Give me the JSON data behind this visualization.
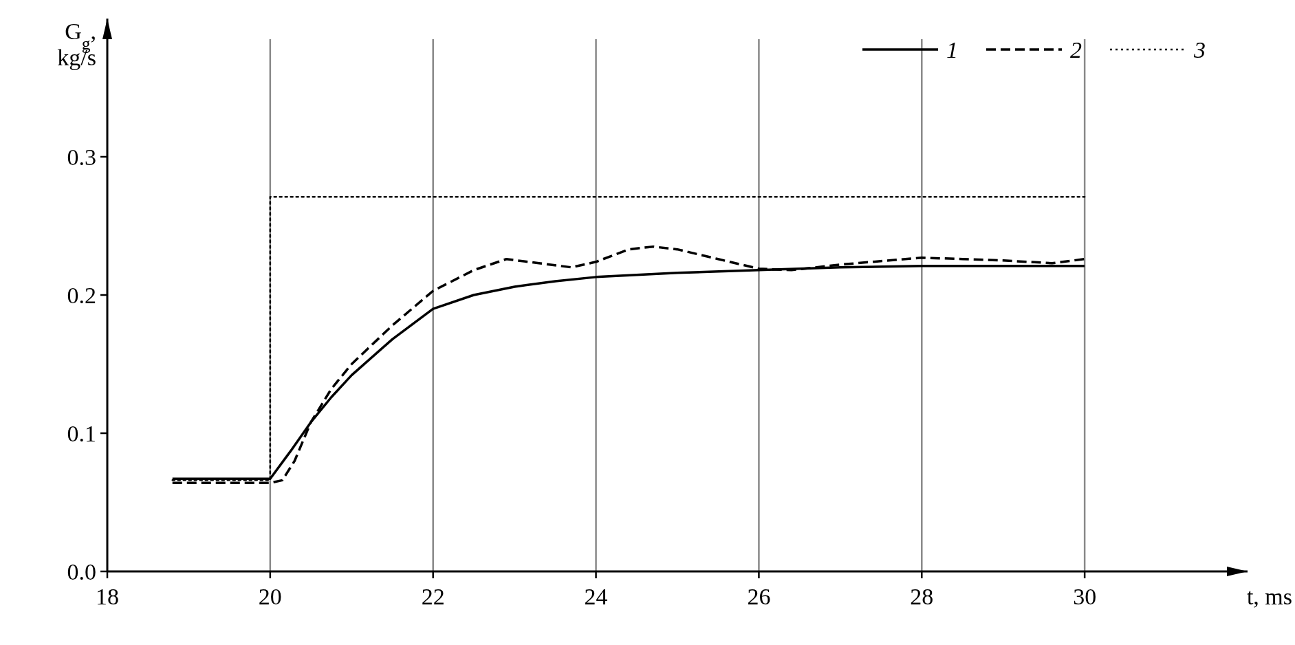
{
  "chart_data": {
    "type": "line",
    "xlabel": "t, ms",
    "ylabel": "G$_{g}$, kg/s",
    "xlim": [
      18,
      32
    ],
    "ylim": [
      0,
      0.4
    ],
    "xticks": [
      18,
      20,
      22,
      24,
      26,
      28,
      30
    ],
    "yticks": [
      {
        "value": 0,
        "label": "0.0"
      },
      0.1,
      0.2,
      0.3
    ],
    "grid": "x",
    "legend": "top right",
    "series": [
      {
        "name": "1",
        "color": "#000000",
        "line_style": "solid",
        "x": [
          18.8,
          20,
          20.25,
          20.5,
          20.75,
          21,
          21.5,
          22,
          22.5,
          23,
          23.5,
          24,
          25,
          26,
          27,
          28,
          30
        ],
        "values": [
          0.067,
          0.067,
          0.087,
          0.108,
          0.126,
          0.142,
          0.168,
          0.19,
          0.2,
          0.206,
          0.21,
          0.213,
          0.216,
          0.218,
          0.22,
          0.221,
          0.221
        ]
      },
      {
        "name": "2",
        "color": "#000000",
        "line_style": "dashed",
        "x": [
          18.8,
          20,
          20.15,
          20.3,
          20.5,
          20.75,
          21,
          21.5,
          22,
          22.5,
          22.9,
          23.3,
          23.7,
          24,
          24.4,
          24.7,
          25,
          25.5,
          26,
          26.4,
          27,
          28,
          28.5,
          29,
          29.6,
          30
        ],
        "values": [
          0.064,
          0.064,
          0.066,
          0.08,
          0.108,
          0.132,
          0.15,
          0.178,
          0.203,
          0.218,
          0.226,
          0.223,
          0.22,
          0.224,
          0.233,
          0.235,
          0.233,
          0.226,
          0.219,
          0.218,
          0.222,
          0.227,
          0.226,
          0.225,
          0.223,
          0.226
        ]
      },
      {
        "name": "3",
        "color": "#000000",
        "line_style": "dotted",
        "x": [
          18.8,
          20,
          20,
          30
        ],
        "values": [
          0.066,
          0.066,
          0.271,
          0.271
        ]
      }
    ]
  }
}
